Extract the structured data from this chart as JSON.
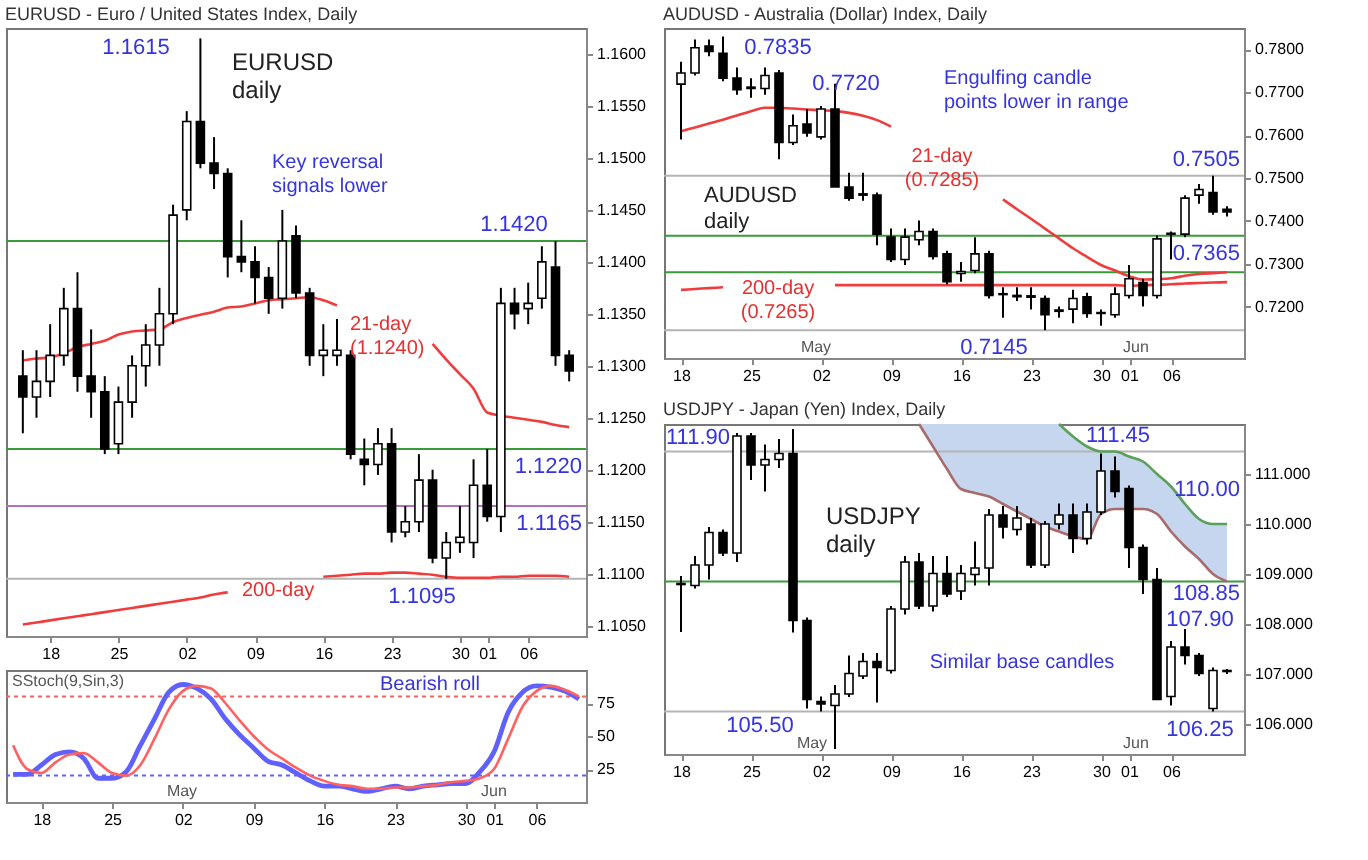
{
  "chart_data": [
    {
      "type": "candlestick",
      "title": "EURUSD - Euro / United States Index, Daily",
      "categories": [
        null,
        null,
        "18",
        null,
        null,
        null,
        null,
        "25",
        null,
        null,
        null,
        null,
        "02",
        null,
        null,
        null,
        null,
        "09",
        null,
        null,
        null,
        null,
        "16",
        null,
        null,
        null,
        null,
        "23",
        null,
        null,
        null,
        null,
        "30",
        null,
        "01",
        null,
        null,
        "06",
        null,
        null,
        null
      ],
      "ohlc": [
        [
          1.129,
          1.1315,
          1.1235,
          1.127
        ],
        [
          1.127,
          1.1315,
          1.125,
          1.1285
        ],
        [
          1.1285,
          1.134,
          1.127,
          1.131
        ],
        [
          1.131,
          1.1375,
          1.13,
          1.1355
        ],
        [
          1.1355,
          1.139,
          1.1275,
          1.129
        ],
        [
          1.129,
          1.1335,
          1.125,
          1.1275
        ],
        [
          1.1275,
          1.129,
          1.1215,
          1.122
        ],
        [
          1.1225,
          1.128,
          1.1215,
          1.1265
        ],
        [
          1.1265,
          1.131,
          1.125,
          1.13
        ],
        [
          1.13,
          1.134,
          1.128,
          1.132
        ],
        [
          1.132,
          1.1375,
          1.13,
          1.135
        ],
        [
          1.135,
          1.1455,
          1.134,
          1.1445
        ],
        [
          1.145,
          1.1545,
          1.144,
          1.1535
        ],
        [
          1.1535,
          1.1615,
          1.149,
          1.1495
        ],
        [
          1.1495,
          1.152,
          1.147,
          1.1485
        ],
        [
          1.1485,
          1.149,
          1.1385,
          1.1405
        ],
        [
          1.1405,
          1.144,
          1.139,
          1.14
        ],
        [
          1.14,
          1.1415,
          1.136,
          1.1385
        ],
        [
          1.1385,
          1.1395,
          1.135,
          1.1365
        ],
        [
          1.1365,
          1.145,
          1.1355,
          1.142
        ],
        [
          1.1425,
          1.1435,
          1.1365,
          1.137
        ],
        [
          1.137,
          1.1375,
          1.13,
          1.131
        ],
        [
          1.131,
          1.134,
          1.129,
          1.1315
        ],
        [
          1.131,
          1.1345,
          1.13,
          1.1315
        ],
        [
          1.131,
          1.1315,
          1.121,
          1.1215
        ],
        [
          1.121,
          1.123,
          1.1185,
          1.1205
        ],
        [
          1.1205,
          1.124,
          1.1195,
          1.1225
        ],
        [
          1.1225,
          1.124,
          1.113,
          1.114
        ],
        [
          1.114,
          1.1165,
          1.1135,
          1.115
        ],
        [
          1.115,
          1.1215,
          1.114,
          1.119
        ],
        [
          1.119,
          1.12,
          1.111,
          1.1115
        ],
        [
          1.1115,
          1.114,
          1.1095,
          1.113
        ],
        [
          1.113,
          1.1165,
          1.112,
          1.1135
        ],
        [
          1.113,
          1.121,
          1.1115,
          1.1185
        ],
        [
          1.1185,
          1.122,
          1.115,
          1.1155
        ],
        [
          1.1155,
          1.1375,
          1.114,
          1.136
        ],
        [
          1.136,
          1.1375,
          1.1335,
          1.135
        ],
        [
          1.1355,
          1.138,
          1.134,
          1.136
        ],
        [
          1.1365,
          1.1415,
          1.1355,
          1.14
        ],
        [
          1.1395,
          1.142,
          1.13,
          1.131
        ],
        [
          1.131,
          1.1315,
          1.1285,
          1.1295
        ]
      ],
      "series": [
        {
          "type": "line",
          "color": "#f03c3c",
          "values": [
            1.1305,
            1.1307,
            1.1308,
            1.1312,
            1.1318,
            1.1321,
            1.1324,
            1.133,
            1.1333,
            1.1334,
            1.1335,
            1.1342,
            1.1346,
            1.1349,
            1.1352,
            1.1356,
            1.1357,
            1.136,
            1.1363,
            1.1364,
            1.1365,
            1.1366,
            1.1363,
            1.1358,
            null,
            null,
            null,
            null,
            null,
            null,
            1.1321,
            1.1306,
            1.1292,
            1.1278,
            1.1255,
            1.1252,
            1.125,
            1.1248,
            1.1246,
            1.1243,
            1.1241
          ]
        },
        {
          "type": "line",
          "color": "#f03c3c",
          "values": [
            1.1051,
            1.1053,
            1.1055,
            1.1057,
            1.1059,
            1.1061,
            1.1063,
            1.1065,
            1.1067,
            1.1069,
            1.1071,
            1.1073,
            1.1075,
            1.1077,
            1.108,
            1.1082,
            null,
            null,
            null,
            null,
            null,
            null,
            1.1097,
            1.1098,
            1.1099,
            1.11,
            1.11,
            1.1101,
            1.1101,
            1.11,
            1.1099,
            1.1097,
            1.1096,
            1.1096,
            1.1096,
            1.1097,
            1.1097,
            1.1098,
            1.1098,
            1.1098,
            1.1097
          ]
        }
      ],
      "ylim": [
        1.104,
        1.1625
      ],
      "yticks": [
        {
          "value": 1.105,
          "label": "1.1050"
        },
        {
          "value": 1.11,
          "label": "1.1100"
        },
        {
          "value": 1.115,
          "label": "1.1150"
        },
        {
          "value": 1.12,
          "label": "1.1200"
        },
        {
          "value": 1.125,
          "label": "1.1250"
        },
        {
          "value": 1.13,
          "label": "1.1300"
        },
        {
          "value": 1.135,
          "label": "1.1350"
        },
        {
          "value": 1.14,
          "label": "1.1400"
        },
        {
          "value": 1.145,
          "label": "1.1450"
        },
        {
          "value": 1.15,
          "label": "1.1500"
        },
        {
          "value": 1.155,
          "label": "1.1550"
        },
        {
          "value": 1.16,
          "label": "1.1600"
        }
      ],
      "ref_lines": [
        {
          "axis": "y",
          "value": 1.142,
          "label": "1.1420",
          "color": "#3a9a3a"
        },
        {
          "axis": "y",
          "value": 1.122,
          "label": "1.1220",
          "color": "#3a9a3a"
        },
        {
          "axis": "y",
          "value": 1.1165,
          "label": "1.1165",
          "color": "#b070c0"
        },
        {
          "axis": "y",
          "value": 1.1095,
          "label": "1.1095",
          "color": "#b4b4b4"
        }
      ],
      "annotations": [
        "1.1615",
        "EURUSD\ndaily",
        "Key reversal\nsignals lower",
        "21-day\n(1.1240)",
        "200-day"
      ]
    },
    {
      "type": "line",
      "categories": [
        null,
        null,
        "18",
        null,
        null,
        null,
        null,
        "25",
        null,
        null,
        null,
        null,
        "02",
        null,
        null,
        null,
        null,
        "09",
        null,
        null,
        null,
        null,
        "16",
        null,
        null,
        null,
        null,
        "23",
        null,
        null,
        null,
        null,
        "30",
        null,
        "01",
        null,
        null,
        "06",
        null,
        null,
        null
      ],
      "series": [
        {
          "type": "line",
          "color": "#6060ff",
          "values": [
            21,
            21,
            28,
            36,
            38,
            33,
            18,
            18,
            23,
            43,
            63,
            83,
            89,
            86,
            78,
            63,
            51,
            41,
            31,
            28,
            22,
            16,
            12,
            12,
            10,
            8,
            10,
            12,
            10,
            12,
            13,
            14,
            14,
            23,
            38,
            68,
            83,
            88,
            87,
            84,
            78
          ]
        },
        {
          "type": "line",
          "color": "#ff6060",
          "values": [
            43,
            25,
            22,
            30,
            36,
            37,
            30,
            22,
            20,
            28,
            48,
            70,
            84,
            88,
            86,
            75,
            62,
            50,
            40,
            33,
            26,
            20,
            16,
            13,
            12,
            10,
            10,
            11,
            11,
            12,
            13,
            15,
            16,
            18,
            25,
            48,
            72,
            84,
            88,
            85,
            80
          ]
        }
      ],
      "ylim": [
        0,
        100
      ],
      "yticks": [
        25,
        50,
        75
      ],
      "ref_lines": [
        {
          "axis": "y",
          "value": 80,
          "color": "#ff6060",
          "line_style": "dotted"
        },
        {
          "axis": "y",
          "value": 20,
          "color": "#6060ff",
          "line_style": "dotted"
        }
      ],
      "annotations": [
        "SStoch(9,Sin,3)",
        "Bearish roll",
        "May",
        "Jun"
      ]
    },
    {
      "type": "candlestick",
      "title": "AUDUSD - Australia (Dollar) Index, Daily",
      "categories": [
        "18",
        null,
        null,
        null,
        null,
        "25",
        null,
        null,
        null,
        null,
        "02",
        null,
        null,
        null,
        null,
        "09",
        null,
        null,
        null,
        null,
        "16",
        null,
        null,
        null,
        null,
        "23",
        null,
        null,
        null,
        null,
        "30",
        null,
        "01",
        null,
        null,
        "06",
        null,
        null,
        null,
        null
      ],
      "ohlc": [
        [
          0.7719,
          0.7771,
          0.759,
          0.7745
        ],
        [
          0.7745,
          0.7823,
          0.7739,
          0.7804
        ],
        [
          0.7808,
          0.7823,
          0.7784,
          0.7795
        ],
        [
          0.7791,
          0.783,
          0.7726,
          0.7733
        ],
        [
          0.7733,
          0.7758,
          0.7694,
          0.7706
        ],
        [
          0.7712,
          0.7733,
          0.7687,
          0.7709
        ],
        [
          0.7709,
          0.7758,
          0.7694,
          0.7739
        ],
        [
          0.7745,
          0.7752,
          0.7544,
          0.7583
        ],
        [
          0.7583,
          0.7648,
          0.7577,
          0.7622
        ],
        [
          0.7626,
          0.7661,
          0.7596,
          0.7605
        ],
        [
          0.7596,
          0.7668,
          0.759,
          0.7661
        ],
        [
          0.7661,
          0.772,
          0.7479,
          0.7479
        ],
        [
          0.7479,
          0.7512,
          0.7447,
          0.7453
        ],
        [
          0.7463,
          0.7512,
          0.7447,
          0.746
        ],
        [
          0.746,
          0.7466,
          0.7343,
          0.7369
        ],
        [
          0.7362,
          0.7382,
          0.7304,
          0.731
        ],
        [
          0.731,
          0.7382,
          0.7297,
          0.7362
        ],
        [
          0.7356,
          0.7401,
          0.7343,
          0.7375
        ],
        [
          0.7375,
          0.7382,
          0.731,
          0.7317
        ],
        [
          0.7323,
          0.733,
          0.7252,
          0.7258
        ],
        [
          0.7277,
          0.7304,
          0.7258,
          0.7282
        ],
        [
          0.7284,
          0.7362,
          0.7278,
          0.7323
        ],
        [
          0.7323,
          0.733,
          0.7219,
          0.7226
        ],
        [
          0.723,
          0.7245,
          0.7174,
          0.7228
        ],
        [
          0.7226,
          0.7245,
          0.7213,
          0.7223
        ],
        [
          0.7225,
          0.7245,
          0.7193,
          0.7222
        ],
        [
          0.7219,
          0.7226,
          0.7145,
          0.7181
        ],
        [
          0.7192,
          0.72,
          0.7174,
          0.7189
        ],
        [
          0.7194,
          0.7239,
          0.7161,
          0.7219
        ],
        [
          0.7223,
          0.7232,
          0.7174,
          0.7184
        ],
        [
          0.7186,
          0.7193,
          0.7155,
          0.7184
        ],
        [
          0.7181,
          0.7245,
          0.7174,
          0.7229
        ],
        [
          0.7226,
          0.7297,
          0.7219,
          0.7265
        ],
        [
          0.7256,
          0.7265,
          0.72,
          0.7226
        ],
        [
          0.7226,
          0.7366,
          0.7219,
          0.7358
        ],
        [
          0.7371,
          0.7375,
          0.731,
          0.7369
        ],
        [
          0.7369,
          0.746,
          0.7362,
          0.7453
        ],
        [
          0.746,
          0.7486,
          0.744,
          0.7473
        ],
        [
          0.7466,
          0.7505,
          0.7414,
          0.7421
        ],
        [
          0.7427,
          0.7434,
          0.741,
          0.7421
        ]
      ],
      "series": [
        {
          "type": "line",
          "color": "#f03c3c",
          "values": [
            0.7609,
            0.7618,
            0.7627,
            0.7636,
            0.7646,
            0.7656,
            0.7664,
            0.7664,
            0.7662,
            0.766,
            0.7658,
            0.7656,
            0.7652,
            0.7645,
            0.7635,
            0.762,
            null,
            null,
            null,
            null,
            null,
            null,
            null,
            0.745,
            0.7427,
            0.7405,
            0.7382,
            0.7359,
            0.7336,
            0.7316,
            0.7297,
            0.7284,
            0.7271,
            0.7263,
            0.7264,
            0.7266,
            0.7272,
            0.7276,
            0.7278,
            0.728
          ]
        },
        {
          "type": "line",
          "color": "#f03c3c",
          "values": [
            0.7239,
            0.7241,
            0.7243,
            0.7245,
            null,
            null,
            null,
            null,
            null,
            null,
            null,
            0.725,
            0.725,
            0.725,
            0.725,
            0.725,
            0.725,
            0.725,
            0.725,
            0.725,
            0.725,
            0.725,
            0.725,
            0.725,
            0.725,
            0.725,
            0.725,
            0.725,
            0.725,
            0.725,
            0.725,
            0.725,
            0.7248,
            0.725,
            0.7251,
            0.7252,
            0.7254,
            0.7255,
            0.7256,
            0.7257
          ]
        }
      ],
      "ylim": [
        0.708,
        0.785
      ],
      "yticks": [
        {
          "value": 0.72,
          "label": "0.7200"
        },
        {
          "value": 0.73,
          "label": "0.7300"
        },
        {
          "value": 0.74,
          "label": "0.7400"
        },
        {
          "value": 0.75,
          "label": "0.7500"
        },
        {
          "value": 0.76,
          "label": "0.7600"
        },
        {
          "value": 0.77,
          "label": "0.7700"
        },
        {
          "value": 0.78,
          "label": "0.7800"
        }
      ],
      "ref_lines": [
        {
          "axis": "y",
          "value": 0.7505,
          "label": "0.7505",
          "color": "#b4b4b4"
        },
        {
          "axis": "y",
          "value": 0.7365,
          "label": "0.7365",
          "color": "#3a9a3a"
        },
        {
          "axis": "y",
          "value": 0.728,
          "color": "#3a9a3a"
        },
        {
          "axis": "y",
          "value": 0.7145,
          "label": "0.7145",
          "color": "#b4b4b4"
        }
      ],
      "annotations": [
        "0.7835",
        "0.7720",
        "Engulfing candle\npoints lower in range",
        "21-day\n(0.7285)",
        "AUDUSD\ndaily",
        "200-day\n(0.7265)",
        "May",
        "Jun"
      ]
    },
    {
      "type": "candlestick",
      "title": "USDJPY - Japan (Yen) Index, Daily",
      "categories": [
        "18",
        null,
        null,
        null,
        null,
        "25",
        null,
        null,
        null,
        null,
        "02",
        null,
        null,
        null,
        null,
        "09",
        null,
        null,
        null,
        null,
        "16",
        null,
        null,
        null,
        null,
        "23",
        null,
        null,
        null,
        null,
        "30",
        null,
        "01",
        null,
        null,
        "06",
        null,
        null,
        null,
        null
      ],
      "ohlc": [
        [
          108.81,
          108.96,
          107.84,
          108.79
        ],
        [
          108.77,
          109.36,
          108.71,
          109.18
        ],
        [
          109.18,
          109.94,
          108.89,
          109.83
        ],
        [
          109.83,
          109.89,
          109.36,
          109.42
        ],
        [
          109.42,
          111.82,
          109.24,
          111.76
        ],
        [
          111.76,
          111.82,
          110.88,
          111.18
        ],
        [
          111.18,
          111.59,
          110.65,
          111.29
        ],
        [
          111.29,
          111.7,
          111.12,
          111.41
        ],
        [
          111.41,
          111.9,
          107.83,
          108.07
        ],
        [
          108.07,
          108.13,
          106.31,
          106.49
        ],
        [
          106.45,
          106.55,
          106.25,
          106.4
        ],
        [
          106.37,
          106.78,
          105.5,
          106.6
        ],
        [
          106.6,
          107.37,
          106.54,
          107.01
        ],
        [
          106.96,
          107.42,
          106.9,
          107.25
        ],
        [
          107.25,
          107.42,
          106.43,
          107.13
        ],
        [
          107.07,
          108.36,
          107.01,
          108.3
        ],
        [
          108.3,
          109.36,
          108.19,
          109.24
        ],
        [
          109.24,
          109.42,
          108.3,
          108.36
        ],
        [
          108.36,
          109.36,
          108.25,
          109.01
        ],
        [
          109.01,
          109.36,
          108.54,
          108.6
        ],
        [
          108.66,
          109.18,
          108.48,
          109.01
        ],
        [
          108.99,
          109.65,
          108.77,
          109.12
        ],
        [
          109.12,
          110.3,
          108.77,
          110.18
        ],
        [
          110.18,
          110.36,
          109.71,
          109.94
        ],
        [
          109.89,
          110.36,
          109.77,
          110.12
        ],
        [
          110.0,
          110.12,
          109.12,
          109.18
        ],
        [
          109.18,
          110.06,
          109.12,
          110.0
        ],
        [
          110.0,
          110.41,
          109.89,
          110.18
        ],
        [
          110.18,
          110.41,
          109.42,
          109.71
        ],
        [
          109.71,
          110.41,
          109.59,
          110.24
        ],
        [
          110.24,
          111.41,
          110.18,
          111.06
        ],
        [
          111.06,
          111.35,
          110.53,
          110.65
        ],
        [
          110.71,
          110.77,
          109.12,
          109.53
        ],
        [
          109.53,
          109.59,
          108.6,
          108.89
        ],
        [
          108.89,
          109.12,
          106.49,
          106.49
        ],
        [
          106.55,
          107.66,
          106.37,
          107.54
        ],
        [
          107.54,
          107.9,
          107.19,
          107.37
        ],
        [
          107.37,
          107.42,
          106.96,
          107.01
        ],
        [
          106.31,
          107.13,
          106.25,
          107.07
        ],
        [
          107.07,
          107.1,
          107.0,
          107.05
        ]
      ],
      "series": [
        {
          "type": "line",
          "color": "#a86a6a",
          "values": [
            null,
            null,
            null,
            null,
            null,
            null,
            null,
            null,
            null,
            null,
            null,
            null,
            null,
            null,
            null,
            null,
            null,
            112.0,
            111.55,
            111.1,
            110.7,
            110.62,
            110.55,
            110.4,
            110.25,
            110.1,
            109.95,
            109.85,
            109.75,
            109.7,
            110.2,
            110.3,
            110.3,
            110.3,
            110.2,
            109.85,
            109.55,
            109.3,
            109.0,
            108.85
          ],
          "lower": [
            null,
            null,
            null,
            null,
            null,
            null,
            null,
            null,
            null,
            null,
            null,
            null,
            null,
            null,
            null,
            null,
            null,
            112.0,
            111.55,
            111.1,
            110.7,
            110.62,
            110.55,
            110.4,
            110.25,
            110.1,
            109.95,
            109.85,
            109.75,
            109.7,
            110.2,
            110.3,
            110.3,
            110.3,
            110.2,
            109.85,
            109.55,
            109.3,
            109.0,
            108.85
          ],
          "upper": [
            null,
            null,
            null,
            null,
            null,
            null,
            null,
            null,
            null,
            null,
            null,
            null,
            null,
            null,
            null,
            null,
            null,
            112.0,
            112.0,
            112.0,
            112.0,
            112.0,
            112.0,
            112.0,
            112.0,
            112.0,
            112.0,
            112.0,
            111.75,
            111.55,
            111.45,
            111.45,
            111.35,
            111.25,
            111.0,
            110.75,
            110.4,
            110.1,
            110.0,
            110.0
          ]
        },
        {
          "type": "line",
          "color": "#5aa05a",
          "values": [
            null,
            null,
            null,
            null,
            null,
            null,
            null,
            null,
            null,
            null,
            null,
            null,
            null,
            null,
            null,
            null,
            null,
            null,
            null,
            null,
            null,
            null,
            null,
            null,
            null,
            null,
            null,
            112.0,
            111.75,
            111.55,
            111.45,
            111.45,
            111.35,
            111.25,
            111.0,
            110.75,
            110.4,
            110.1,
            110.0,
            110.0
          ]
        }
      ],
      "ylim": [
        105.4,
        112.0
      ],
      "yticks": [
        {
          "value": 106,
          "label": "106.000"
        },
        {
          "value": 107,
          "label": "107.000"
        },
        {
          "value": 108,
          "label": "108.000"
        },
        {
          "value": 109,
          "label": "109.000"
        },
        {
          "value": 110,
          "label": "110.000"
        },
        {
          "value": 111,
          "label": "111.000"
        }
      ],
      "ref_lines": [
        {
          "axis": "y",
          "value": 111.45,
          "label": "111.45",
          "color": "#b4b4b4"
        },
        {
          "axis": "y",
          "value": 108.85,
          "label": "108.85",
          "color": "#3a9a3a"
        },
        {
          "axis": "y",
          "value": 106.25,
          "label": "106.25",
          "color": "#b4b4b4"
        }
      ],
      "annotations": [
        "111.90",
        "USDJPY\ndaily",
        "110.00",
        "107.90",
        "Similar base candles",
        "105.50",
        "May",
        "Jun"
      ]
    }
  ]
}
